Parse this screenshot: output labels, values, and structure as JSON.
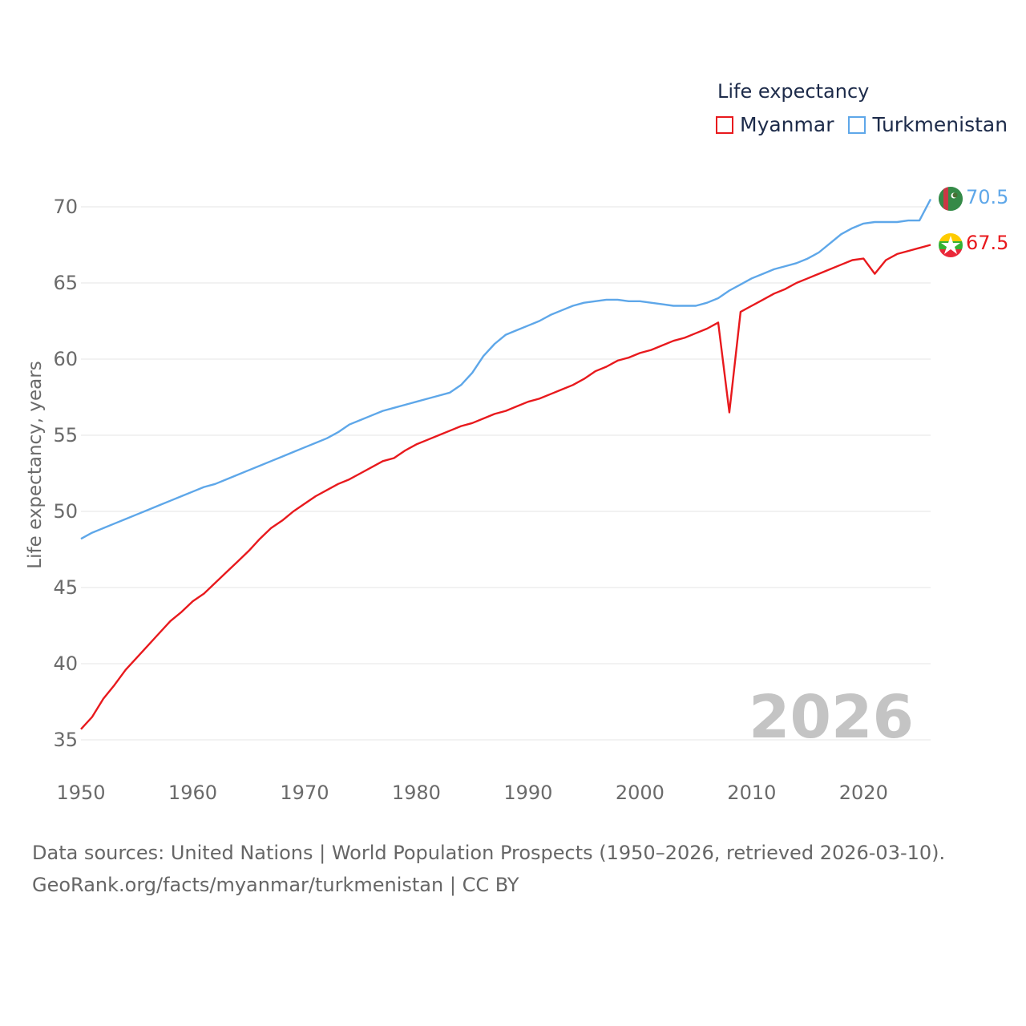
{
  "colors": {
    "myanmar": "#e8191d",
    "turkmenistan": "#5ea7e9",
    "grid": "#e4e4e4",
    "axis_text": "#6a6a6a",
    "year_watermark": "#c4c4c4"
  },
  "legend": {
    "title": "Life expectancy",
    "items": [
      {
        "label": "Myanmar"
      },
      {
        "label": "Turkmenistan"
      }
    ]
  },
  "chart_data": {
    "type": "line",
    "title": "Life expectancy",
    "xlabel": "",
    "ylabel": "Life expectancy, years",
    "xlim": [
      1950,
      2026
    ],
    "ylim": [
      33,
      72.5
    ],
    "x_ticks": [
      1950,
      1960,
      1970,
      1980,
      1990,
      2000,
      2010,
      2020
    ],
    "y_ticks": [
      35,
      40,
      45,
      50,
      55,
      60,
      65,
      70
    ],
    "grid": true,
    "year_label": "2026",
    "series": [
      {
        "name": "Myanmar",
        "color": "#e8191d",
        "end_label": "67.5",
        "points": [
          [
            1950,
            35.7
          ],
          [
            1951,
            36.5
          ],
          [
            1952,
            37.7
          ],
          [
            1953,
            38.6
          ],
          [
            1954,
            39.6
          ],
          [
            1955,
            40.4
          ],
          [
            1956,
            41.2
          ],
          [
            1957,
            42.0
          ],
          [
            1958,
            42.8
          ],
          [
            1959,
            43.4
          ],
          [
            1960,
            44.1
          ],
          [
            1961,
            44.6
          ],
          [
            1962,
            45.3
          ],
          [
            1963,
            46.0
          ],
          [
            1964,
            46.7
          ],
          [
            1965,
            47.4
          ],
          [
            1966,
            48.2
          ],
          [
            1967,
            48.9
          ],
          [
            1968,
            49.4
          ],
          [
            1969,
            50.0
          ],
          [
            1970,
            50.5
          ],
          [
            1971,
            51.0
          ],
          [
            1972,
            51.4
          ],
          [
            1973,
            51.8
          ],
          [
            1974,
            52.1
          ],
          [
            1975,
            52.5
          ],
          [
            1976,
            52.9
          ],
          [
            1977,
            53.3
          ],
          [
            1978,
            53.5
          ],
          [
            1979,
            54.0
          ],
          [
            1980,
            54.4
          ],
          [
            1981,
            54.7
          ],
          [
            1982,
            55.0
          ],
          [
            1983,
            55.3
          ],
          [
            1984,
            55.6
          ],
          [
            1985,
            55.8
          ],
          [
            1986,
            56.1
          ],
          [
            1987,
            56.4
          ],
          [
            1988,
            56.6
          ],
          [
            1989,
            56.9
          ],
          [
            1990,
            57.2
          ],
          [
            1991,
            57.4
          ],
          [
            1992,
            57.7
          ],
          [
            1993,
            58.0
          ],
          [
            1994,
            58.3
          ],
          [
            1995,
            58.7
          ],
          [
            1996,
            59.2
          ],
          [
            1997,
            59.5
          ],
          [
            1998,
            59.9
          ],
          [
            1999,
            60.1
          ],
          [
            2000,
            60.4
          ],
          [
            2001,
            60.6
          ],
          [
            2002,
            60.9
          ],
          [
            2003,
            61.2
          ],
          [
            2004,
            61.4
          ],
          [
            2005,
            61.7
          ],
          [
            2006,
            62.0
          ],
          [
            2007,
            62.4
          ],
          [
            2008,
            56.5
          ],
          [
            2009,
            63.1
          ],
          [
            2010,
            63.5
          ],
          [
            2011,
            63.9
          ],
          [
            2012,
            64.3
          ],
          [
            2013,
            64.6
          ],
          [
            2014,
            65.0
          ],
          [
            2015,
            65.3
          ],
          [
            2016,
            65.6
          ],
          [
            2017,
            65.9
          ],
          [
            2018,
            66.2
          ],
          [
            2019,
            66.5
          ],
          [
            2020,
            66.6
          ],
          [
            2021,
            65.6
          ],
          [
            2022,
            66.5
          ],
          [
            2023,
            66.9
          ],
          [
            2024,
            67.1
          ],
          [
            2025,
            67.3
          ],
          [
            2026,
            67.5
          ]
        ]
      },
      {
        "name": "Turkmenistan",
        "color": "#5ea7e9",
        "end_label": "70.5",
        "points": [
          [
            1950,
            48.2
          ],
          [
            1951,
            48.6
          ],
          [
            1952,
            48.9
          ],
          [
            1953,
            49.2
          ],
          [
            1954,
            49.5
          ],
          [
            1955,
            49.8
          ],
          [
            1956,
            50.1
          ],
          [
            1957,
            50.4
          ],
          [
            1958,
            50.7
          ],
          [
            1959,
            51.0
          ],
          [
            1960,
            51.3
          ],
          [
            1961,
            51.6
          ],
          [
            1962,
            51.8
          ],
          [
            1963,
            52.1
          ],
          [
            1964,
            52.4
          ],
          [
            1965,
            52.7
          ],
          [
            1966,
            53.0
          ],
          [
            1967,
            53.3
          ],
          [
            1968,
            53.6
          ],
          [
            1969,
            53.9
          ],
          [
            1970,
            54.2
          ],
          [
            1971,
            54.5
          ],
          [
            1972,
            54.8
          ],
          [
            1973,
            55.2
          ],
          [
            1974,
            55.7
          ],
          [
            1975,
            56.0
          ],
          [
            1976,
            56.3
          ],
          [
            1977,
            56.6
          ],
          [
            1978,
            56.8
          ],
          [
            1979,
            57.0
          ],
          [
            1980,
            57.2
          ],
          [
            1981,
            57.4
          ],
          [
            1982,
            57.6
          ],
          [
            1983,
            57.8
          ],
          [
            1984,
            58.3
          ],
          [
            1985,
            59.1
          ],
          [
            1986,
            60.2
          ],
          [
            1987,
            61.0
          ],
          [
            1988,
            61.6
          ],
          [
            1989,
            61.9
          ],
          [
            1990,
            62.2
          ],
          [
            1991,
            62.5
          ],
          [
            1992,
            62.9
          ],
          [
            1993,
            63.2
          ],
          [
            1994,
            63.5
          ],
          [
            1995,
            63.7
          ],
          [
            1996,
            63.8
          ],
          [
            1997,
            63.9
          ],
          [
            1998,
            63.9
          ],
          [
            1999,
            63.8
          ],
          [
            2000,
            63.8
          ],
          [
            2001,
            63.7
          ],
          [
            2002,
            63.6
          ],
          [
            2003,
            63.5
          ],
          [
            2004,
            63.5
          ],
          [
            2005,
            63.5
          ],
          [
            2006,
            63.7
          ],
          [
            2007,
            64.0
          ],
          [
            2008,
            64.5
          ],
          [
            2009,
            64.9
          ],
          [
            2010,
            65.3
          ],
          [
            2011,
            65.6
          ],
          [
            2012,
            65.9
          ],
          [
            2013,
            66.1
          ],
          [
            2014,
            66.3
          ],
          [
            2015,
            66.6
          ],
          [
            2016,
            67.0
          ],
          [
            2017,
            67.6
          ],
          [
            2018,
            68.2
          ],
          [
            2019,
            68.6
          ],
          [
            2020,
            68.9
          ],
          [
            2021,
            69.0
          ],
          [
            2022,
            69.0
          ],
          [
            2023,
            69.0
          ],
          [
            2024,
            69.1
          ],
          [
            2025,
            69.1
          ],
          [
            2026,
            70.5
          ]
        ]
      }
    ]
  },
  "source": {
    "line1": "Data sources: United Nations | World Population Prospects (1950–2026, retrieved 2026-03-10).",
    "line2": "GeoRank.org/facts/myanmar/turkmenistan | CC BY"
  }
}
